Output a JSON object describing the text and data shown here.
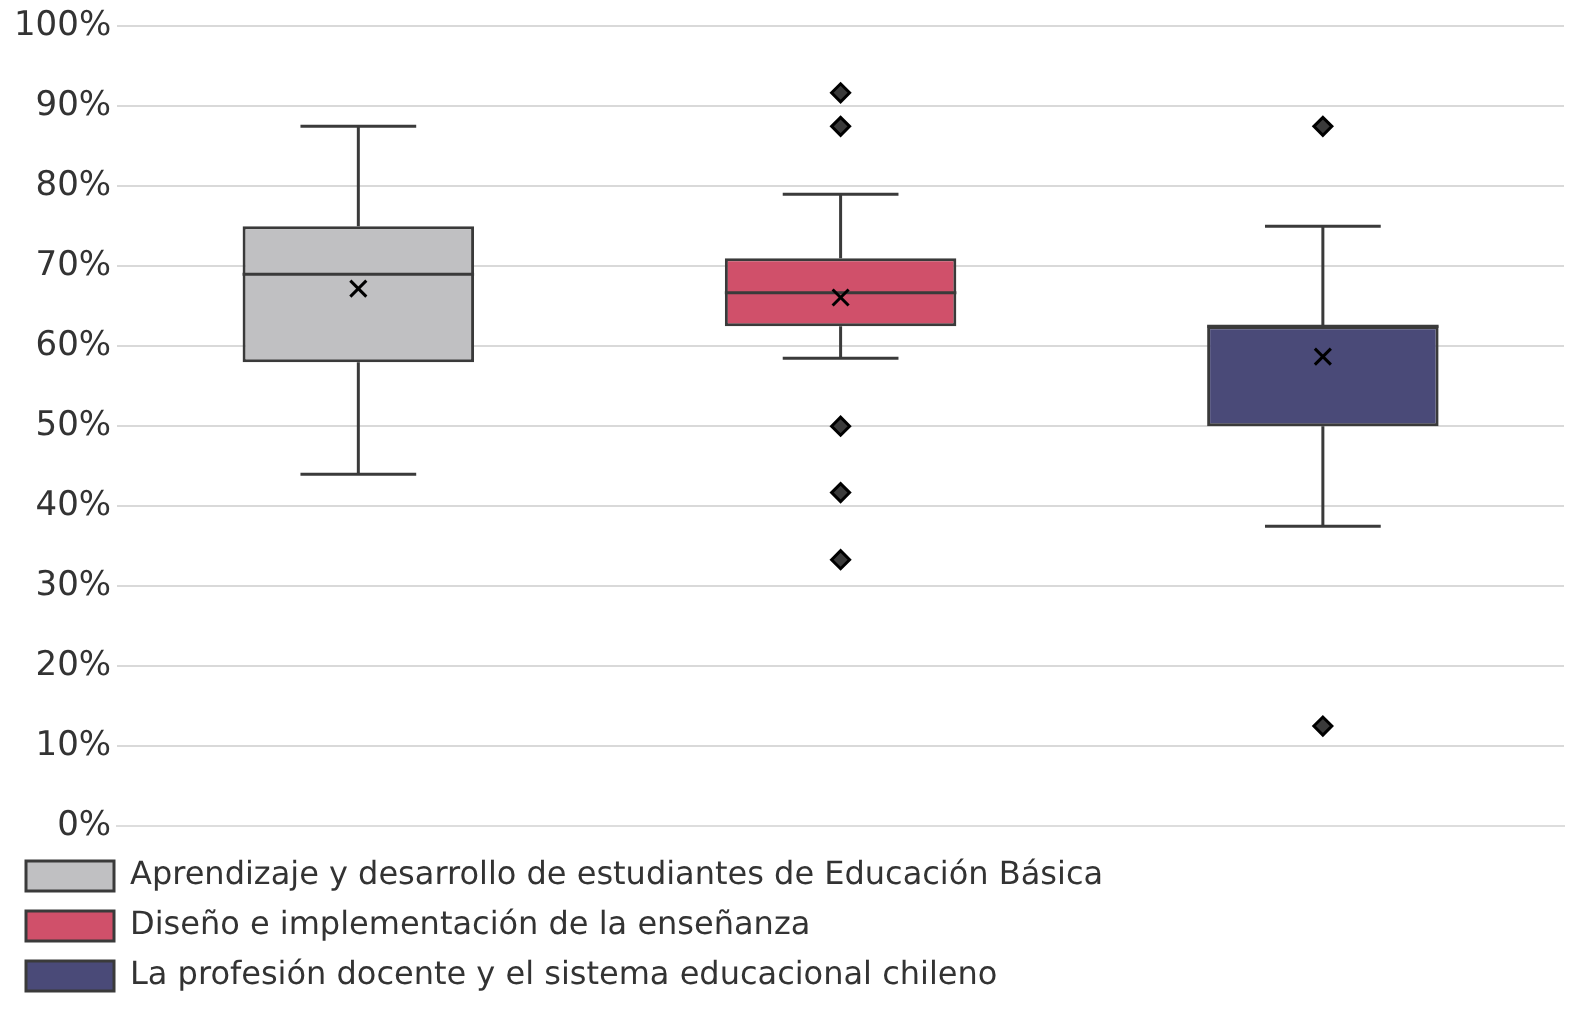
{
  "chart_data": {
    "type": "box",
    "categories": [
      null,
      null,
      null
    ],
    "series": [
      {
        "name": "Aprendizaje y desarrollo de estudiantes de Educación Básica",
        "color": "#c0c0c2",
        "boxes": [
          {
            "low": 44,
            "q1": 58,
            "median": 69,
            "q3": 75,
            "high": 87.5,
            "mean": 67.2
          },
          null,
          null
        ]
      },
      {
        "name": "Diseño e implementación de la enseñanza",
        "color": "#d0506a",
        "boxes": [
          null,
          {
            "low": 58.5,
            "q1": 62.5,
            "median": 66.7,
            "q3": 71,
            "high": 79,
            "mean": 66.1,
            "outliers": [
              91.7,
              87.5,
              50,
              41.7,
              33.3
            ]
          },
          null
        ]
      },
      {
        "name": "La profesión docente y el sistema educacional chileno",
        "color": "#4a4a78",
        "boxes": [
          null,
          null,
          {
            "low": 37.5,
            "q1": 50,
            "median": 62.5,
            "q3": 62.5,
            "high": 75,
            "mean": 58.7,
            "outliers": [
              87.5,
              12.5
            ]
          }
        ]
      }
    ],
    "ylim": [
      0,
      100
    ],
    "yticks": [
      {
        "value": 0,
        "label": "0%"
      },
      {
        "value": 10,
        "label": "10%"
      },
      {
        "value": 20,
        "label": "20%"
      },
      {
        "value": 30,
        "label": "30%"
      },
      {
        "value": 40,
        "label": "40%"
      },
      {
        "value": 50,
        "label": "50%"
      },
      {
        "value": 60,
        "label": "60%"
      },
      {
        "value": 70,
        "label": "70%"
      },
      {
        "value": 80,
        "label": "80%"
      },
      {
        "value": 90,
        "label": "90%"
      },
      {
        "value": 100,
        "label": "100%"
      }
    ],
    "grid": "y",
    "legend": "bottom",
    "marker": "diamond"
  }
}
